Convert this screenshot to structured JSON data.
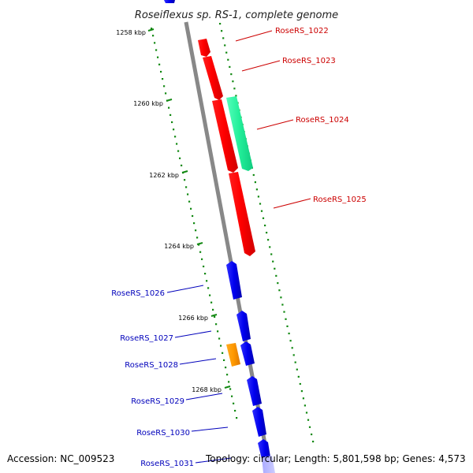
{
  "title": "Roseiflexus sp. RS-1, complete genome",
  "accession": "Accession: NC_009523",
  "topology": "Topology: circular; Length: 5,801,598 bp; Genes: 4,573",
  "colors": {
    "backbone": "#888888",
    "tick": "#118811",
    "forward_label": "#cc0000",
    "reverse_label": "#0000bb"
  },
  "kbp_labels": [
    "1258 kbp",
    "1260 kbp",
    "1262 kbp",
    "1264 kbp",
    "1266 kbp",
    "1268 kbp"
  ],
  "gene_labels": [
    {
      "name": "RoseRS_1022",
      "strand": "forward"
    },
    {
      "name": "RoseRS_1023",
      "strand": "forward"
    },
    {
      "name": "RoseRS_1024",
      "strand": "forward"
    },
    {
      "name": "RoseRS_1025",
      "strand": "forward"
    },
    {
      "name": "RoseRS_1026",
      "strand": "reverse"
    },
    {
      "name": "RoseRS_1027",
      "strand": "reverse"
    },
    {
      "name": "RoseRS_1028",
      "strand": "reverse"
    },
    {
      "name": "RoseRS_1029",
      "strand": "reverse"
    },
    {
      "name": "RoseRS_1030",
      "strand": "reverse"
    },
    {
      "name": "RoseRS_1031",
      "strand": "reverse"
    }
  ]
}
